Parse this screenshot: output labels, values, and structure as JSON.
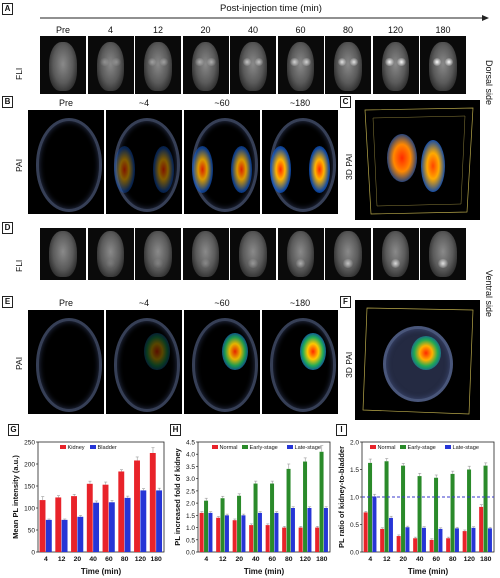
{
  "panel_labels": [
    "A",
    "B",
    "C",
    "D",
    "E",
    "F",
    "G",
    "H",
    "I"
  ],
  "header": {
    "title": "Post-injection time (min)"
  },
  "row_a": {
    "row_label": "FLI",
    "times": [
      "Pre",
      "4",
      "12",
      "20",
      "40",
      "60",
      "80",
      "120",
      "180"
    ]
  },
  "row_b": {
    "row_label": "PAI",
    "times": [
      "Pre",
      "~4",
      "~60",
      "~180"
    ]
  },
  "row_c": {
    "label": "3D PAI"
  },
  "row_d": {
    "row_label": "FLI",
    "times": [
      "Pre",
      "4",
      "12",
      "20",
      "40",
      "60",
      "80",
      "120",
      "180"
    ]
  },
  "row_e": {
    "row_label": "PAI",
    "times": [
      "Pre",
      "~4",
      "~60",
      "~180"
    ]
  },
  "row_f": {
    "label": "3D PAI"
  },
  "side_labels": {
    "dorsal": "Dorsal side",
    "ventral": "Ventral side"
  },
  "colors": {
    "red": "#e8232a",
    "blue": "#2635d6",
    "green": "#2a8a2a"
  },
  "chart_data": [
    {
      "type": "bar",
      "panel": "G",
      "categories": [
        "4",
        "12",
        "20",
        "40",
        "60",
        "80",
        "120",
        "180"
      ],
      "xlabel": "Time (min)",
      "ylabel": "Mean PL intensity (a.u.)",
      "ylim": [
        0,
        250
      ],
      "yticks": [
        "0",
        "50",
        "100",
        "150",
        "200",
        "250"
      ],
      "legend_position": "top-left",
      "series": [
        {
          "name": "Kidney",
          "color": "#e8232a",
          "values": [
            118,
            124,
            127,
            155,
            153,
            183,
            208,
            225
          ],
          "err": [
            8,
            4,
            4,
            6,
            6,
            4,
            8,
            12
          ]
        },
        {
          "name": "Bladder",
          "color": "#2635d6",
          "values": [
            73,
            73,
            80,
            112,
            113,
            123,
            140,
            140
          ],
          "err": [
            2,
            2,
            3,
            4,
            4,
            4,
            4,
            5
          ]
        }
      ]
    },
    {
      "type": "bar",
      "panel": "H",
      "categories": [
        "4",
        "12",
        "20",
        "40",
        "60",
        "80",
        "120",
        "180"
      ],
      "xlabel": "Time (min)",
      "ylabel": "PL increased fold of kidney",
      "ylim": [
        0,
        4.5
      ],
      "yticks": [
        "0.0",
        "0.5",
        "1.0",
        "1.5",
        "2.0",
        "2.5",
        "3.0",
        "3.5",
        "4.0",
        "4.5"
      ],
      "legend_position": "top",
      "series": [
        {
          "name": "Normal",
          "color": "#e8232a",
          "values": [
            1.6,
            1.4,
            1.3,
            1.1,
            1.1,
            1.0,
            1.0,
            1.0
          ],
          "err": [
            0.05,
            0.05,
            0.05,
            0.05,
            0.05,
            0.05,
            0.05,
            0.05
          ]
        },
        {
          "name": "Early-stage",
          "color": "#2a8a2a",
          "values": [
            2.1,
            2.2,
            2.3,
            2.8,
            2.8,
            3.4,
            3.7,
            4.1
          ],
          "err": [
            0.1,
            0.08,
            0.08,
            0.1,
            0.1,
            0.2,
            0.15,
            0.25
          ]
        },
        {
          "name": "Late-stage",
          "color": "#2635d6",
          "values": [
            1.6,
            1.5,
            1.5,
            1.6,
            1.6,
            1.8,
            1.8,
            1.8
          ],
          "err": [
            0.05,
            0.05,
            0.05,
            0.05,
            0.05,
            0.05,
            0.05,
            0.05
          ]
        }
      ]
    },
    {
      "type": "bar",
      "panel": "I",
      "categories": [
        "4",
        "12",
        "20",
        "40",
        "60",
        "80",
        "120",
        "180"
      ],
      "xlabel": "Time (min)",
      "ylabel": "PL ratio of kidney-to-bladder",
      "ylim": [
        0,
        2.0
      ],
      "yticks": [
        "0.0",
        "0.5",
        "1.0",
        "1.5",
        "2.0"
      ],
      "reference_line": 1.0,
      "legend_position": "top",
      "series": [
        {
          "name": "Normal",
          "color": "#e8232a",
          "values": [
            0.72,
            0.42,
            0.29,
            0.25,
            0.22,
            0.25,
            0.38,
            0.82
          ],
          "err": [
            0.02,
            0.02,
            0.02,
            0.02,
            0.02,
            0.02,
            0.02,
            0.04
          ]
        },
        {
          "name": "Early-stage",
          "color": "#2a8a2a",
          "values": [
            1.62,
            1.65,
            1.57,
            1.38,
            1.35,
            1.42,
            1.5,
            1.57
          ],
          "err": [
            0.07,
            0.05,
            0.04,
            0.05,
            0.05,
            0.05,
            0.06,
            0.05
          ]
        },
        {
          "name": "Late-stage",
          "color": "#2635d6",
          "values": [
            1.01,
            0.62,
            0.45,
            0.44,
            0.42,
            0.43,
            0.44,
            0.43
          ],
          "err": [
            0.04,
            0.03,
            0.02,
            0.02,
            0.02,
            0.02,
            0.02,
            0.02
          ]
        }
      ]
    }
  ]
}
